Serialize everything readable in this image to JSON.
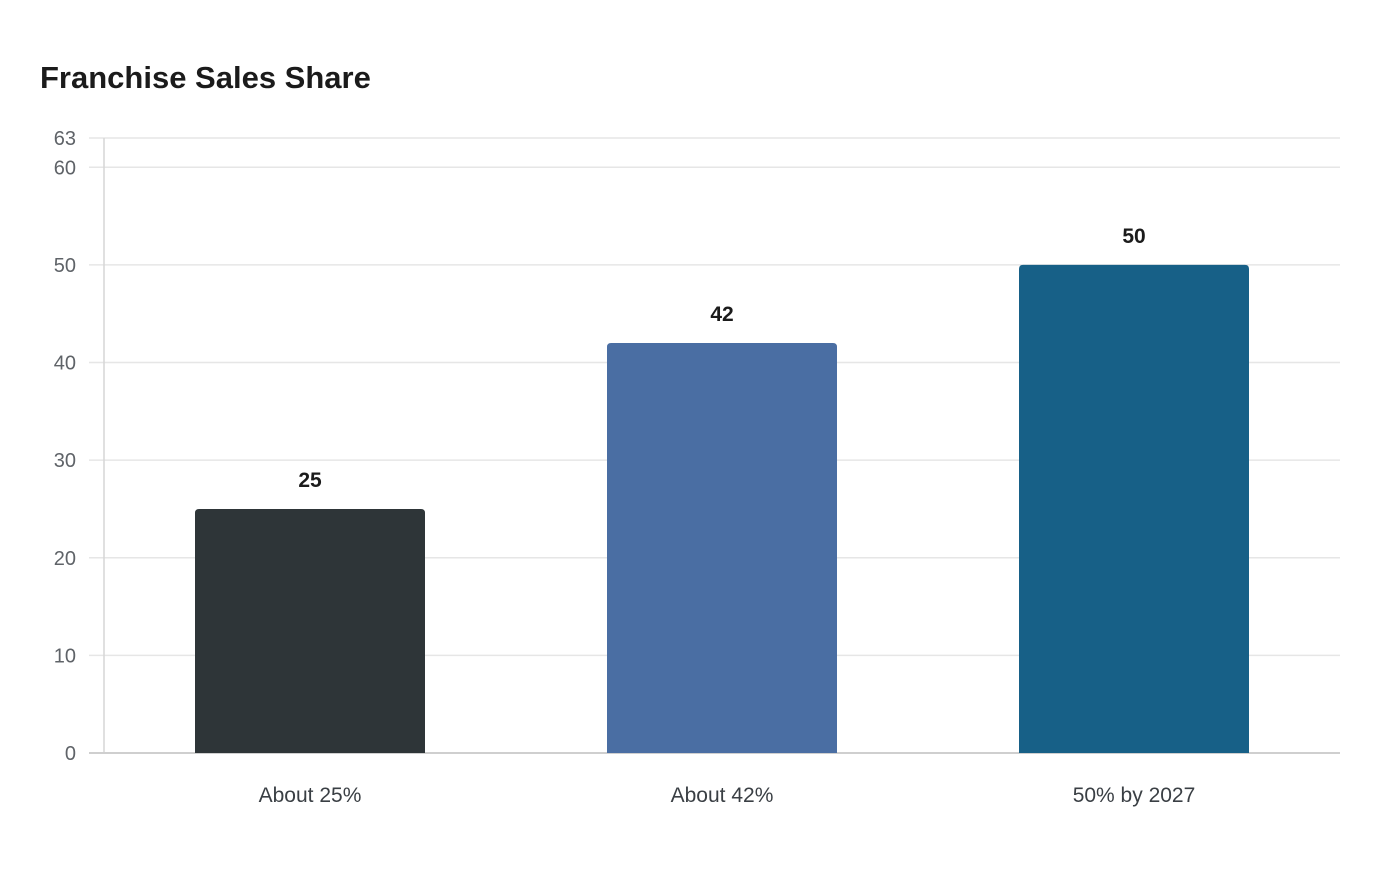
{
  "chart_data": {
    "type": "bar",
    "title": "Franchise Sales Share",
    "xlabel": "",
    "ylabel": "",
    "categories": [
      "About 25%",
      "About 42%",
      "50% by 2027"
    ],
    "values": [
      25,
      42,
      50
    ],
    "bar_colors": [
      "#2e3538",
      "#4a6ea3",
      "#176087"
    ],
    "ylim": [
      0,
      63
    ],
    "yticks": [
      0,
      10,
      20,
      30,
      40,
      50,
      60,
      63
    ],
    "grid": true,
    "legend": "none",
    "data_labels": true
  }
}
